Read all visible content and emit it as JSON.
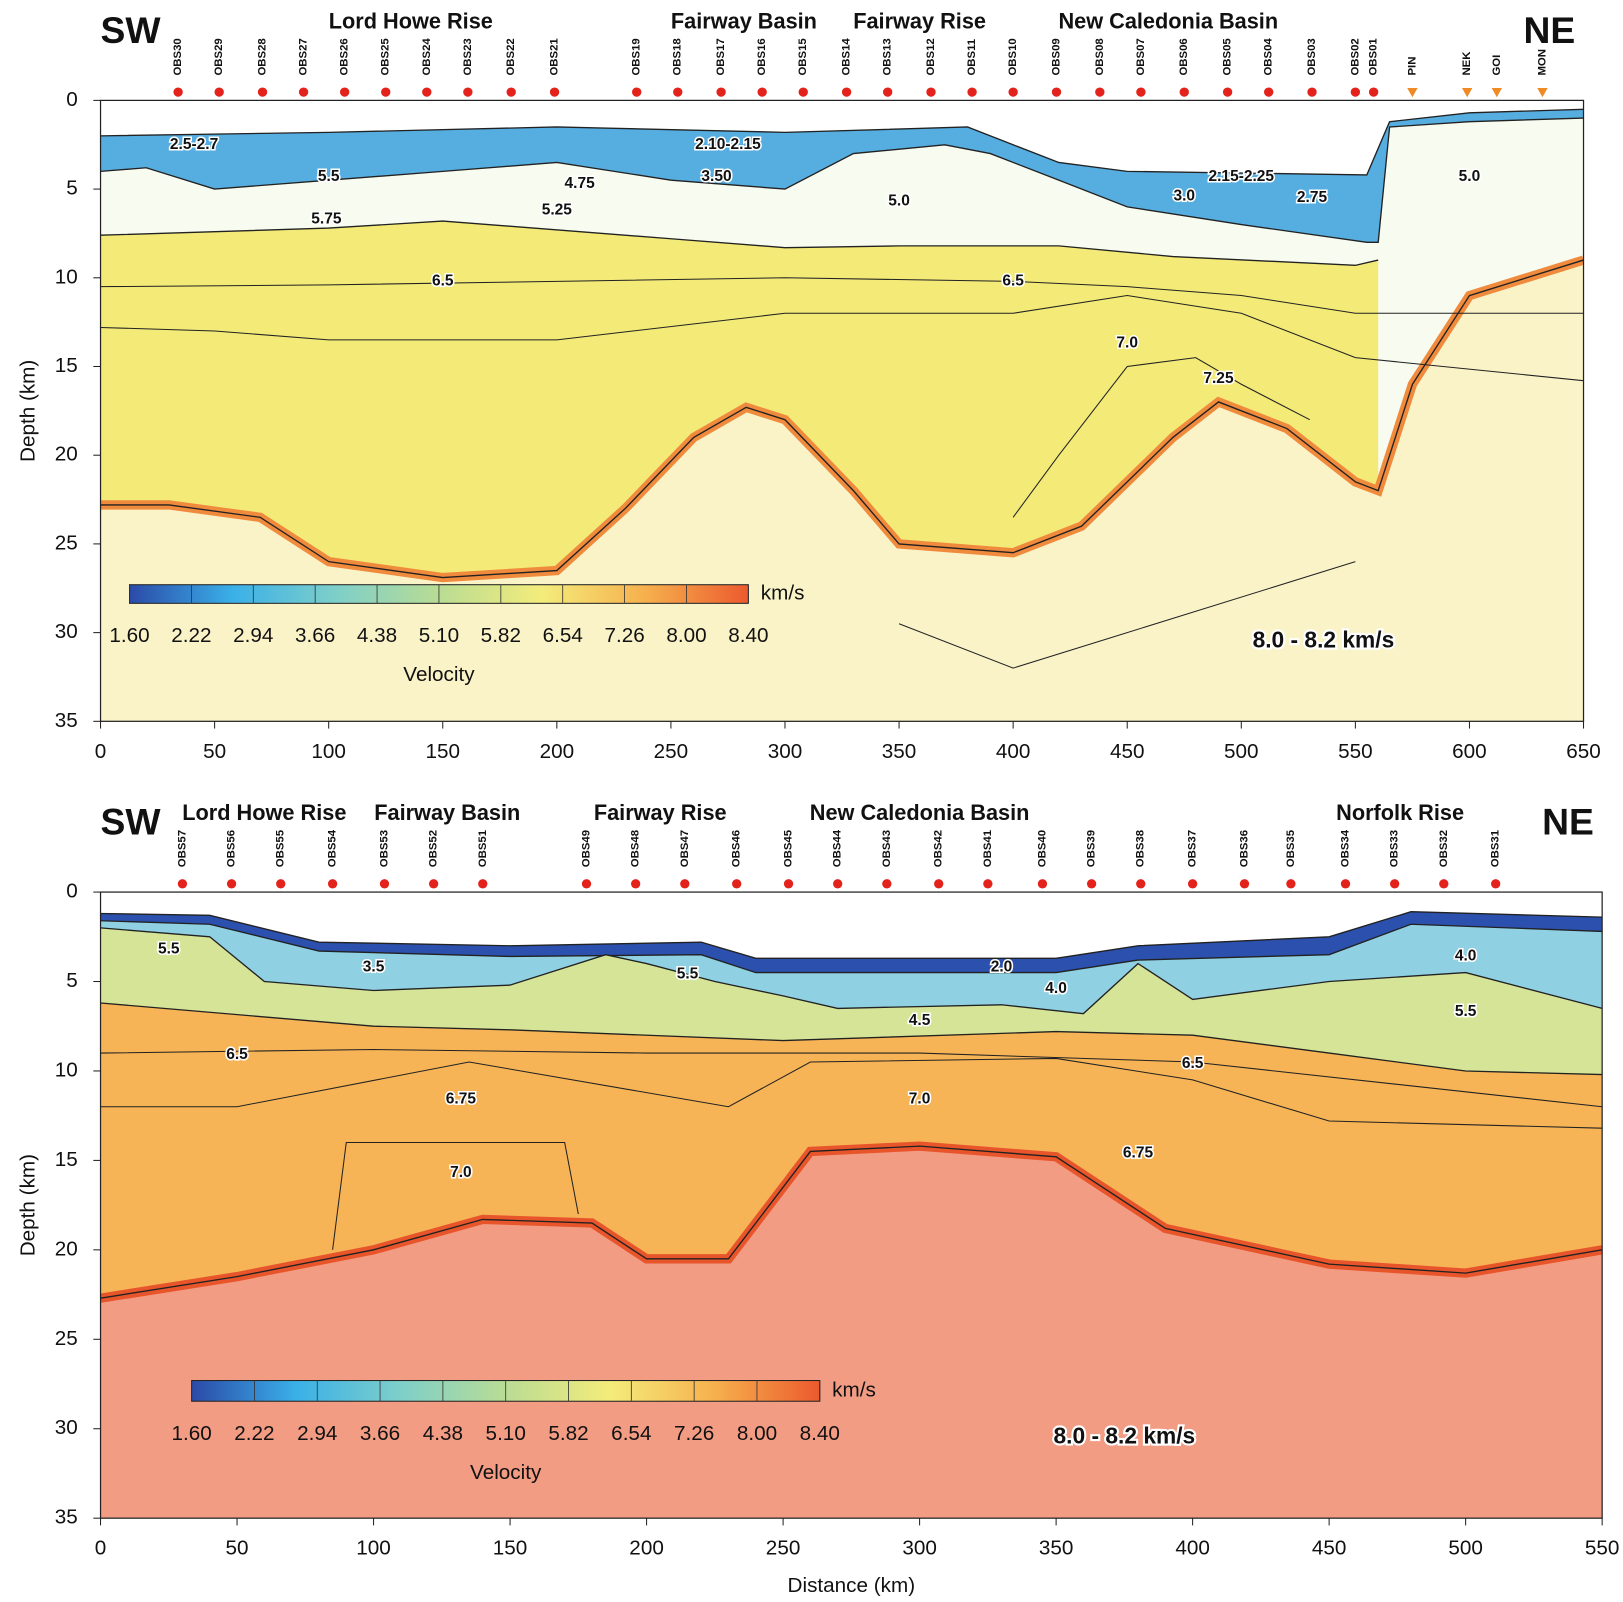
{
  "chart_data": [
    {
      "type": "section",
      "left_label": "SW",
      "right_label": "NE",
      "regions": [
        {
          "label": "Lord Howe Rise",
          "x": 136
        },
        {
          "label": "Fairway Basin",
          "x": 282
        },
        {
          "label": "Fairway Rise",
          "x": 359
        },
        {
          "label": "New Caledonia Basin",
          "x": 468
        }
      ],
      "stations": [
        {
          "name": "OBS30",
          "x": 34
        },
        {
          "name": "OBS29",
          "x": 52
        },
        {
          "name": "OBS28",
          "x": 71
        },
        {
          "name": "OBS27",
          "x": 89
        },
        {
          "name": "OBS26",
          "x": 107
        },
        {
          "name": "OBS25",
          "x": 125
        },
        {
          "name": "OBS24",
          "x": 143
        },
        {
          "name": "OBS23",
          "x": 161
        },
        {
          "name": "OBS22",
          "x": 180
        },
        {
          "name": "OBS21",
          "x": 199
        },
        {
          "name": "OBS19",
          "x": 235
        },
        {
          "name": "OBS18",
          "x": 253
        },
        {
          "name": "OBS17",
          "x": 272
        },
        {
          "name": "OBS16",
          "x": 290
        },
        {
          "name": "OBS15",
          "x": 308
        },
        {
          "name": "OBS14",
          "x": 327
        },
        {
          "name": "OBS13",
          "x": 345
        },
        {
          "name": "OBS12",
          "x": 364
        },
        {
          "name": "OBS11",
          "x": 382
        },
        {
          "name": "OBS10",
          "x": 400
        },
        {
          "name": "OBS09",
          "x": 419
        },
        {
          "name": "OBS08",
          "x": 438
        },
        {
          "name": "OBS07",
          "x": 456
        },
        {
          "name": "OBS06",
          "x": 475
        },
        {
          "name": "OBS05",
          "x": 494
        },
        {
          "name": "OBS04",
          "x": 512
        },
        {
          "name": "OBS03",
          "x": 531
        },
        {
          "name": "OBS02",
          "x": 550
        },
        {
          "name": "OBS01",
          "x": 558
        }
      ],
      "land_stations": [
        {
          "name": "PIN",
          "x": 575
        },
        {
          "name": "NEK",
          "x": 599
        },
        {
          "name": "GOI",
          "x": 612
        },
        {
          "name": "MON",
          "x": 632
        }
      ],
      "station_color": "#e3231b",
      "land_color": "#f08a24",
      "xlim": [
        0,
        650
      ],
      "ylim": [
        0,
        35
      ],
      "xticks": [
        0,
        50,
        100,
        150,
        200,
        250,
        300,
        350,
        400,
        450,
        500,
        550,
        600,
        650
      ],
      "yticks": [
        0,
        5,
        10,
        15,
        20,
        25,
        30,
        35
      ],
      "ylabel": "Depth (km)",
      "layers": [
        {
          "color": "#56ade0",
          "x": [
            0,
            100,
            200,
            300,
            380,
            400,
            420,
            450,
            555,
            565,
            600,
            650
          ],
          "y": [
            2,
            1.8,
            1.5,
            1.8,
            1.5,
            2.5,
            3.5,
            4,
            4.2,
            1.2,
            0.7,
            0.5
          ]
        },
        {
          "color": "#f8fbef",
          "x": [
            0,
            20,
            50,
            100,
            150,
            200,
            250,
            300,
            330,
            370,
            390,
            420,
            450,
            500,
            555,
            560,
            565,
            600,
            650
          ],
          "y": [
            4,
            3.8,
            5,
            4.5,
            4,
            3.5,
            4.5,
            5,
            3,
            2.5,
            3,
            4.5,
            6,
            7,
            8,
            8,
            1.5,
            1.2,
            1
          ]
        },
        {
          "color": "#f3ea78",
          "x": [
            0,
            100,
            150,
            250,
            300,
            350,
            420,
            470,
            550,
            560
          ],
          "y": [
            7.6,
            7.2,
            6.8,
            7.8,
            8.3,
            8.2,
            8.2,
            8.8,
            9.3,
            9
          ]
        },
        {
          "color": "#faf3c8",
          "edge_color": "#f08a3c",
          "x": [
            0,
            30,
            70,
            100,
            150,
            200,
            230,
            260,
            283,
            300,
            330,
            350,
            400,
            430,
            470,
            490,
            520,
            550,
            560,
            575,
            600,
            650
          ],
          "y": [
            22.8,
            22.8,
            23.5,
            26,
            26.9,
            26.5,
            23,
            19,
            17.3,
            18,
            22,
            25,
            25.5,
            24,
            19,
            17,
            18.5,
            21.5,
            22,
            16,
            11,
            9
          ]
        }
      ],
      "contours": [
        {
          "x": [
            0,
            100,
            200,
            300,
            400,
            450,
            500,
            550,
            650
          ],
          "y": [
            10.5,
            10.4,
            10.2,
            10,
            10.2,
            10.5,
            11,
            12,
            12
          ]
        },
        {
          "x": [
            0,
            50,
            100,
            200,
            300,
            400,
            450,
            500,
            550,
            650
          ],
          "y": [
            12.8,
            13,
            13.5,
            13.5,
            12,
            12,
            11,
            12,
            14.5,
            15.8
          ]
        },
        {
          "x": [
            400,
            420,
            450,
            480,
            500,
            530
          ],
          "y": [
            23.5,
            20,
            15,
            14.5,
            16,
            18
          ]
        },
        {
          "x": [
            350,
            400,
            550
          ],
          "y": [
            29.5,
            32,
            26
          ]
        }
      ],
      "contour_labels": [
        {
          "label": "2.5-2.7",
          "x": 41,
          "y": 2.5
        },
        {
          "label": "2.10-2.15",
          "x": 275,
          "y": 2.5
        },
        {
          "label": "5.5",
          "x": 100,
          "y": 4.3
        },
        {
          "label": "4.75",
          "x": 210,
          "y": 4.7
        },
        {
          "label": "3.50",
          "x": 270,
          "y": 4.3
        },
        {
          "label": "5.25",
          "x": 200,
          "y": 6.2
        },
        {
          "label": "5.75",
          "x": 99,
          "y": 6.7
        },
        {
          "label": "5.0",
          "x": 350,
          "y": 5.7
        },
        {
          "label": "2.15-2.25",
          "x": 500,
          "y": 4.3
        },
        {
          "label": "3.0",
          "x": 475,
          "y": 5.4
        },
        {
          "label": "2.75",
          "x": 531,
          "y": 5.5
        },
        {
          "label": "5.0",
          "x": 600,
          "y": 4.3
        },
        {
          "label": "6.5",
          "x": 150,
          "y": 10.2
        },
        {
          "label": "6.5",
          "x": 400,
          "y": 10.2
        },
        {
          "label": "7.0",
          "x": 450,
          "y": 13.7
        },
        {
          "label": "7.25",
          "x": 490,
          "y": 15.7
        }
      ],
      "annotation": {
        "text": "8.0 - 8.2 km/s",
        "x": 536,
        "y": 30.5
      },
      "colorbar": {
        "ticks": [
          {
            "value": 1.6,
            "label": "1.60"
          },
          {
            "value": 2.22,
            "label": "2.22"
          },
          {
            "value": 2.94,
            "label": "2.94"
          },
          {
            "value": 3.66,
            "label": "3.66"
          },
          {
            "value": 4.38,
            "label": "4.38"
          },
          {
            "value": 5.1,
            "label": "5.10"
          },
          {
            "value": 5.82,
            "label": "5.82"
          },
          {
            "value": 6.54,
            "label": "6.54"
          },
          {
            "value": 7.26,
            "label": "7.26"
          },
          {
            "value": 8,
            "label": "8.00"
          },
          {
            "value": 8.4,
            "label": "8.40"
          }
        ],
        "colors": [
          "#2b4aa8",
          "#3ab0e8",
          "#7ecfc9",
          "#b9dc94",
          "#f4ec7b",
          "#f6b04d",
          "#ec5a2e"
        ],
        "unit": "km/s",
        "label": "Velocity"
      }
    },
    {
      "type": "section",
      "left_label": "SW",
      "right_label": "NE",
      "regions": [
        {
          "label": "Lord Howe Rise",
          "x": 60
        },
        {
          "label": "Fairway Basin",
          "x": 127
        },
        {
          "label": "Fairway Rise",
          "x": 205
        },
        {
          "label": "New Caledonia Basin",
          "x": 300
        },
        {
          "label": "Norfolk Rise",
          "x": 476
        }
      ],
      "stations": [
        {
          "name": "OBS57",
          "x": 30
        },
        {
          "name": "OBS56",
          "x": 48
        },
        {
          "name": "OBS55",
          "x": 66
        },
        {
          "name": "OBS54",
          "x": 85
        },
        {
          "name": "OBS53",
          "x": 104
        },
        {
          "name": "OBS52",
          "x": 122
        },
        {
          "name": "OBS51",
          "x": 140
        },
        {
          "name": "OBS49",
          "x": 178
        },
        {
          "name": "OBS48",
          "x": 196
        },
        {
          "name": "OBS47",
          "x": 214
        },
        {
          "name": "OBS46",
          "x": 233
        },
        {
          "name": "OBS45",
          "x": 252
        },
        {
          "name": "OBS44",
          "x": 270
        },
        {
          "name": "OBS43",
          "x": 288
        },
        {
          "name": "OBS42",
          "x": 307
        },
        {
          "name": "OBS41",
          "x": 325
        },
        {
          "name": "OBS40",
          "x": 345
        },
        {
          "name": "OBS39",
          "x": 363
        },
        {
          "name": "OBS38",
          "x": 381
        },
        {
          "name": "OBS37",
          "x": 400
        },
        {
          "name": "OBS36",
          "x": 419
        },
        {
          "name": "OBS35",
          "x": 436
        },
        {
          "name": "OBS34",
          "x": 456
        },
        {
          "name": "OBS33",
          "x": 474
        },
        {
          "name": "OBS32",
          "x": 492
        },
        {
          "name": "OBS31",
          "x": 511
        }
      ],
      "station_color": "#e3231b",
      "xlim": [
        0,
        550
      ],
      "ylim": [
        0,
        35
      ],
      "xticks": [
        0,
        50,
        100,
        150,
        200,
        250,
        300,
        350,
        400,
        450,
        500,
        550
      ],
      "yticks": [
        0,
        5,
        10,
        15,
        20,
        25,
        30,
        35
      ],
      "xlabel": "Distance (km)",
      "ylabel": "Depth (km)",
      "layers": [
        {
          "color": "#2b50ad",
          "x": [
            0,
            40,
            80,
            150,
            220,
            240,
            350,
            380,
            450,
            480,
            550
          ],
          "y": [
            1.2,
            1.3,
            2.8,
            3,
            2.8,
            3.7,
            3.7,
            3,
            2.5,
            1.1,
            1.4
          ]
        },
        {
          "color": "#8fd0e2",
          "x": [
            0,
            40,
            80,
            150,
            220,
            240,
            350,
            380,
            450,
            480,
            550
          ],
          "y": [
            1.6,
            1.8,
            3.3,
            3.6,
            3.5,
            4.5,
            4.5,
            3.8,
            3.5,
            1.8,
            2.2
          ]
        },
        {
          "color": "#d6e497",
          "x": [
            0,
            40,
            60,
            100,
            150,
            185,
            200,
            225,
            250,
            270,
            330,
            360,
            380,
            400,
            450,
            500,
            550
          ],
          "y": [
            2,
            2.5,
            5,
            5.5,
            5.2,
            3.5,
            4,
            5,
            5.8,
            6.5,
            6.3,
            6.8,
            4,
            6,
            5,
            4.5,
            6.5
          ]
        },
        {
          "color": "#f6b457",
          "x": [
            0,
            100,
            150,
            250,
            350,
            400,
            450,
            500,
            550
          ],
          "y": [
            6.2,
            7.5,
            7.7,
            8.3,
            7.8,
            8,
            9,
            10,
            10.2
          ]
        },
        {
          "color": "#f29c84",
          "edge_color": "#e8552b",
          "x": [
            0,
            50,
            100,
            140,
            180,
            200,
            230,
            260,
            300,
            350,
            390,
            450,
            500,
            550
          ],
          "y": [
            22.7,
            21.5,
            20,
            18.3,
            18.5,
            20.5,
            20.5,
            14.5,
            14.2,
            14.8,
            18.8,
            20.8,
            21.3,
            20
          ]
        }
      ],
      "contours": [
        {
          "x": [
            0,
            100,
            200,
            300,
            400,
            550
          ],
          "y": [
            9,
            8.8,
            9,
            9,
            9.5,
            12
          ]
        },
        {
          "x": [
            0,
            50,
            135,
            230,
            260,
            350,
            400,
            450,
            550
          ],
          "y": [
            12,
            12,
            9.5,
            12,
            9.5,
            9.3,
            10.5,
            12.8,
            13.2
          ]
        },
        {
          "x": [
            85,
            90,
            170,
            175
          ],
          "y": [
            20,
            14,
            14,
            18
          ]
        }
      ],
      "contour_labels": [
        {
          "label": "5.5",
          "x": 25,
          "y": 3.2
        },
        {
          "label": "3.5",
          "x": 100,
          "y": 4.2
        },
        {
          "label": "5.5",
          "x": 215,
          "y": 4.6
        },
        {
          "label": "2.0",
          "x": 330,
          "y": 4.2
        },
        {
          "label": "4.0",
          "x": 350,
          "y": 5.4
        },
        {
          "label": "4.5",
          "x": 300,
          "y": 7.2
        },
        {
          "label": "4.0",
          "x": 500,
          "y": 3.6
        },
        {
          "label": "5.5",
          "x": 500,
          "y": 6.7
        },
        {
          "label": "6.5",
          "x": 50,
          "y": 9.1
        },
        {
          "label": "6.5",
          "x": 400,
          "y": 9.6
        },
        {
          "label": "6.75",
          "x": 132,
          "y": 11.6
        },
        {
          "label": "7.0",
          "x": 300,
          "y": 11.6
        },
        {
          "label": "7.0",
          "x": 132,
          "y": 15.7
        },
        {
          "label": "6.75",
          "x": 380,
          "y": 14.6
        }
      ],
      "annotation": {
        "text": "8.0 - 8.2 km/s",
        "x": 375,
        "y": 30.5
      },
      "colorbar": {
        "ticks": [
          {
            "value": 1.6,
            "label": "1.60"
          },
          {
            "value": 2.22,
            "label": "2.22"
          },
          {
            "value": 2.94,
            "label": "2.94"
          },
          {
            "value": 3.66,
            "label": "3.66"
          },
          {
            "value": 4.38,
            "label": "4.38"
          },
          {
            "value": 5.1,
            "label": "5.10"
          },
          {
            "value": 5.82,
            "label": "5.82"
          },
          {
            "value": 6.54,
            "label": "6.54"
          },
          {
            "value": 7.26,
            "label": "7.26"
          },
          {
            "value": 8,
            "label": "8.00"
          },
          {
            "value": 8.4,
            "label": "8.40"
          }
        ],
        "colors": [
          "#2b4aa8",
          "#3ab0e8",
          "#7ecfc9",
          "#b9dc94",
          "#f4ec7b",
          "#f6b04d",
          "#ec5a2e"
        ],
        "unit": "km/s",
        "label": "Velocity"
      }
    }
  ]
}
